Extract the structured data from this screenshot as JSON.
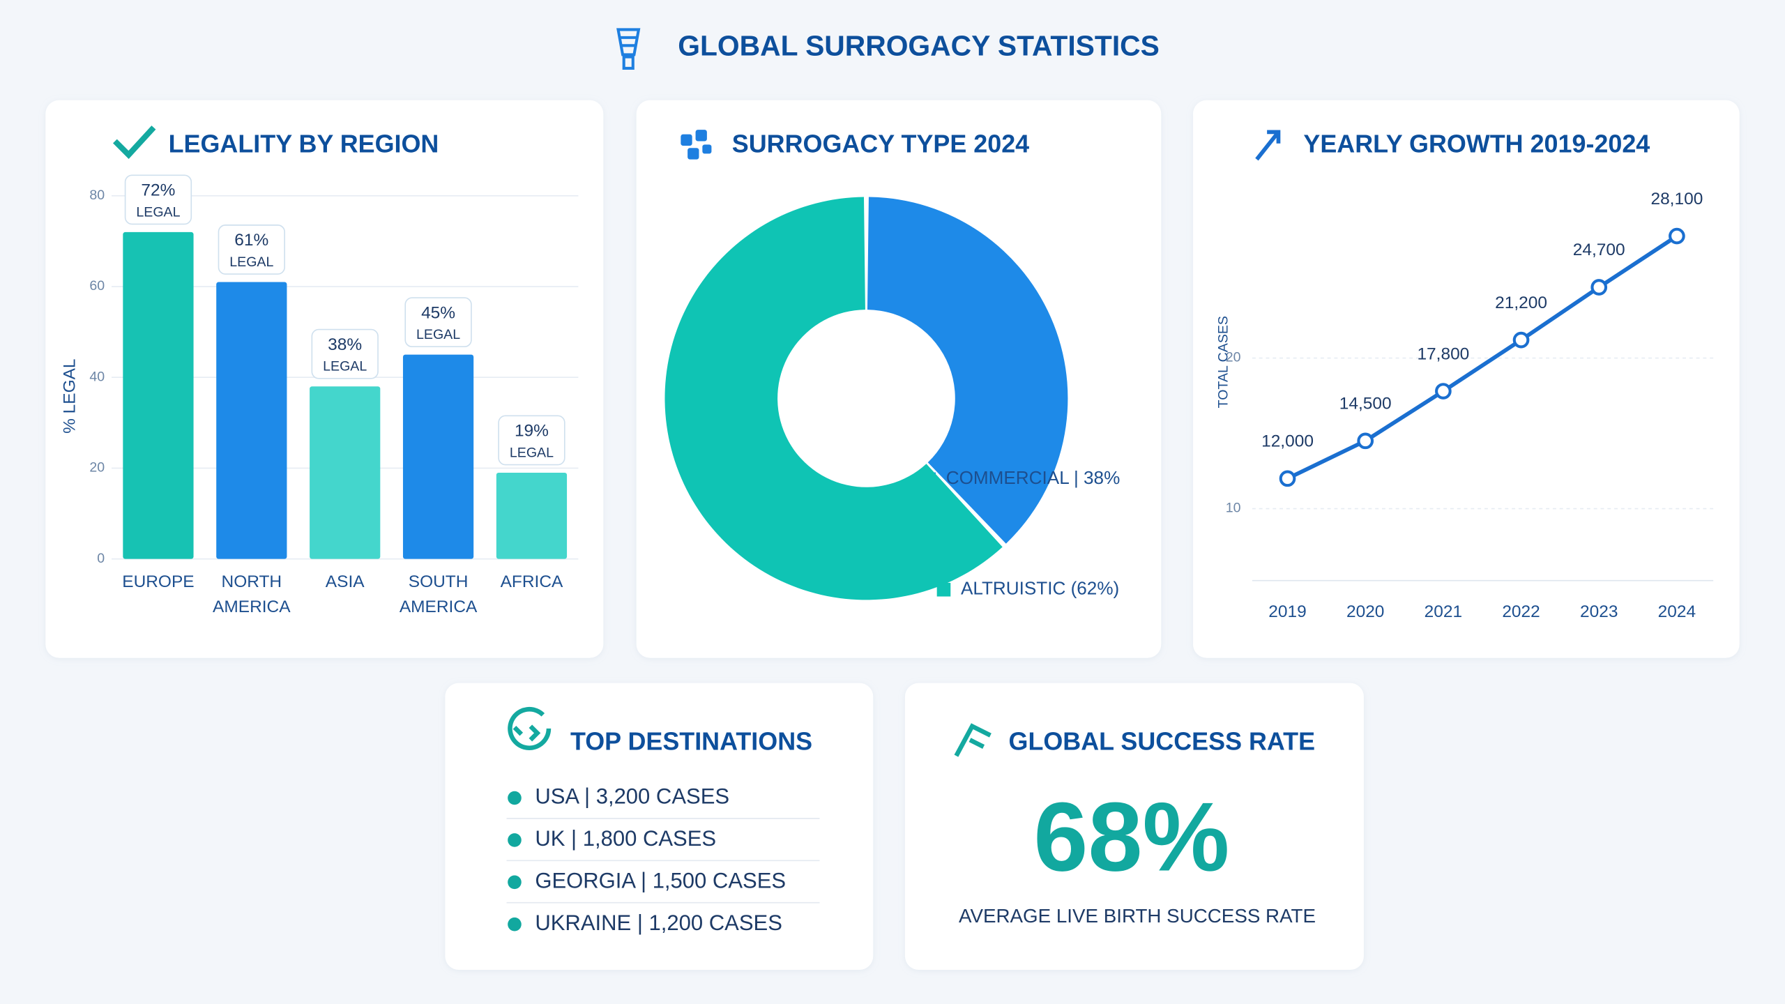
{
  "header": {
    "title": "GLOBAL SURROGACY STATISTICS"
  },
  "chart_data": [
    {
      "type": "bar",
      "title": "LEGALITY BY REGION",
      "y_label": "% LEGAL",
      "categories": [
        "EUROPE",
        "NORTH AMERICA",
        "ASIA",
        "SOUTH AMERICA",
        "AFRICA"
      ],
      "values": [
        72,
        61,
        38,
        45,
        19
      ],
      "value_labels": [
        "72%",
        "61%",
        "38%",
        "45%",
        "19%"
      ],
      "label_note": "LEGAL",
      "colors": [
        "#17c2b3",
        "#1e8ae8",
        "#44d6cc",
        "#1e8ae8",
        "#44d6cc"
      ],
      "ylim": [
        0,
        80
      ],
      "yticks": [
        0,
        20,
        40,
        60,
        80
      ],
      "grid": true
    },
    {
      "type": "pie",
      "title": "SURROGACY TYPE 2024",
      "categories": [
        "COMMERCIAL | 38%",
        "ALTRUISTIC (62%)"
      ],
      "values": [
        38,
        62
      ],
      "colors": [
        "#1e8ae8",
        "#0fc4b4"
      ]
    },
    {
      "type": "line",
      "title": "YEARLY GROWTH 2019-2024",
      "y_label": "TOTAL CASES",
      "x": [
        2019,
        2020,
        2021,
        2022,
        2023,
        2024
      ],
      "values": [
        12000,
        14500,
        17800,
        21200,
        24700,
        28100
      ],
      "value_labels": [
        "12,000",
        "14,500",
        "17,800",
        "21,200",
        "24,700",
        "28,100"
      ],
      "color": "#1a6fd0",
      "xlim": [
        2019,
        2024
      ],
      "xticks": [
        2019,
        2020,
        2021,
        2022,
        2023,
        2024
      ],
      "ylim": [
        5000,
        31000
      ],
      "yticks": [
        {
          "value": 10000,
          "label": "10"
        },
        {
          "value": 20000,
          "label": "20"
        }
      ],
      "grid": true
    }
  ],
  "destinations": {
    "title": "TOP DESTINATIONS",
    "items": [
      "USA | 3,200 CASES",
      "UK | 1,800 CASES",
      "GEORGIA | 1,500 CASES",
      "UKRAINE | 1,200 CASES"
    ]
  },
  "success": {
    "title": "GLOBAL SUCCESS RATE",
    "value": "68%",
    "caption": "AVERAGE LIVE BIRTH SUCCESS RATE"
  }
}
